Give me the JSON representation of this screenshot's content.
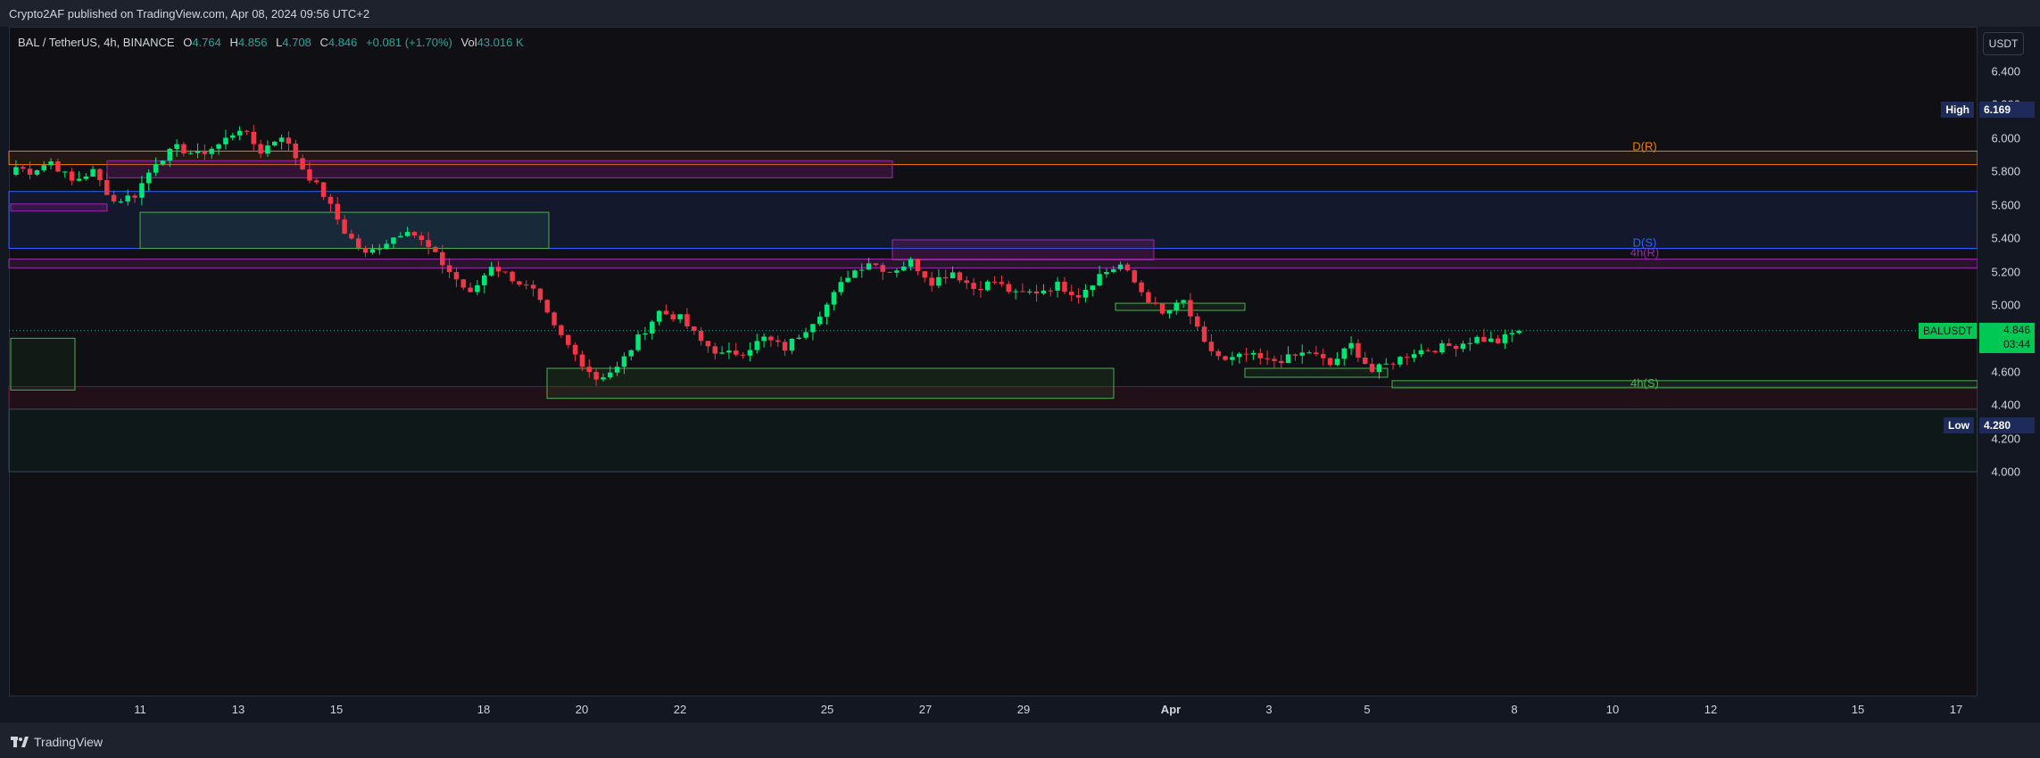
{
  "header": {
    "publisher_line": "Crypto2AF published on TradingView.com, Apr 08, 2024 09:56 UTC+2"
  },
  "symbol": {
    "name": "BAL / TetherUS, 4h, BINANCE",
    "open_label": "O",
    "open": "4.764",
    "high_label": "H",
    "high": "4.856",
    "low_label": "L",
    "low": "4.708",
    "close_label": "C",
    "close": "4.846",
    "change": "+0.081 (+1.70%)",
    "vol_label": "Vol",
    "volume": "43.016 K"
  },
  "price_axis": {
    "currency": "USDT",
    "ticks": [
      "6.400",
      "6.200",
      "6.000",
      "5.800",
      "5.600",
      "5.400",
      "5.200",
      "5.000",
      "4.800",
      "4.600",
      "4.400",
      "4.200",
      "4.000"
    ]
  },
  "markers": {
    "high_label": "High",
    "high_value": "6.169",
    "low_label": "Low",
    "low_value": "4.280",
    "last_symbol": "BALUSDT",
    "last_value": "4.846",
    "countdown": "03:44"
  },
  "time_axis": {
    "ticks": [
      "11",
      "13",
      "15",
      "18",
      "20",
      "22",
      "25",
      "27",
      "29",
      "Apr",
      "3",
      "5",
      "8",
      "10",
      "12",
      "15",
      "17"
    ]
  },
  "zones": [
    {
      "label": "D(R)",
      "color": "#f57c00"
    },
    {
      "label": "D(S)",
      "color": "#2962ff"
    },
    {
      "label": "4h(R)",
      "color": "#9c27b0"
    },
    {
      "label": "4h(S)",
      "color": "#4caf50"
    }
  ],
  "colors": {
    "up": "#26a69a",
    "up_bright": "#00e676",
    "down": "#f23645",
    "background": "#0f0f14"
  },
  "footer": {
    "brand": "TradingView"
  },
  "chart_data": {
    "type": "candlestick",
    "symbol": "BAL / TetherUS",
    "interval": "4h",
    "ylim": [
      3.95,
      6.55
    ],
    "x_ticks": [
      "11",
      "13",
      "15",
      "18",
      "20",
      "22",
      "25",
      "27",
      "29",
      "Apr",
      "3",
      "5",
      "8",
      "10",
      "12",
      "15",
      "17"
    ],
    "close_path": [
      5.84,
      5.8,
      5.86,
      5.74,
      5.8,
      5.62,
      5.66,
      5.86,
      5.94,
      5.9,
      5.96,
      6.06,
      5.92,
      6.02,
      5.82,
      5.66,
      5.44,
      5.3,
      5.38,
      5.46,
      5.34,
      5.2,
      5.06,
      5.24,
      5.16,
      5.08,
      4.86,
      4.7,
      4.56,
      4.62,
      4.8,
      4.96,
      4.92,
      4.78,
      4.7,
      4.72,
      4.8,
      4.74,
      4.86,
      5.0,
      5.18,
      5.26,
      5.2,
      5.26,
      5.14,
      5.2,
      5.1,
      5.14,
      5.06,
      5.08,
      5.12,
      5.06,
      5.18,
      5.24,
      5.08,
      4.94,
      5.02,
      4.76,
      4.66,
      4.7,
      4.66,
      4.68,
      4.72,
      4.64,
      4.76,
      4.6,
      4.66,
      4.72,
      4.74,
      4.76,
      4.8,
      4.78,
      4.85
    ],
    "high": 6.169,
    "low": 4.28,
    "last": 4.846,
    "zones": [
      {
        "label": "D(R)",
        "from": 5.841,
        "to": 5.922
      },
      {
        "label": "D(S)",
        "from": 5.339,
        "to": 5.68
      },
      {
        "label": "4h(R)",
        "from": 5.222,
        "to": 5.275
      },
      {
        "label": "4h(S)",
        "from": 4.503,
        "to": 4.546
      }
    ]
  }
}
